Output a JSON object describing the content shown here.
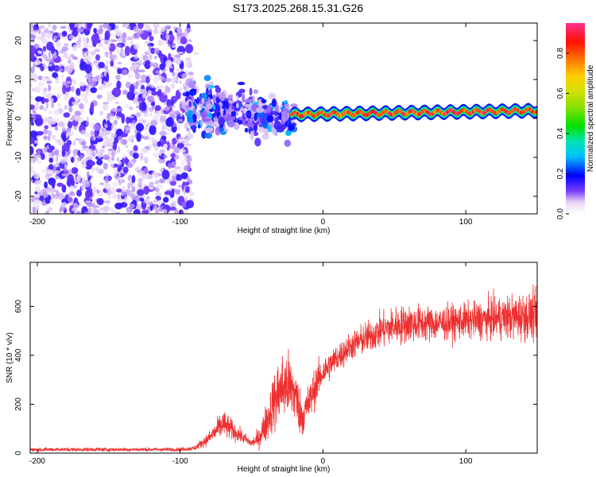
{
  "title": "S173.2025.268.15.31.G26",
  "chart_data": [
    {
      "type": "heatmap",
      "name": "spectrogram",
      "xlabel": "Height of straight line (km)",
      "ylabel": "Frequency (Hz)",
      "xlim": [
        -205,
        150
      ],
      "ylim": [
        -24.5,
        24.5
      ],
      "xticks": [
        -200,
        -100,
        0,
        100
      ],
      "xtick_labels": [
        "-200",
        "-100",
        "0",
        "100"
      ],
      "yticks": [
        -20,
        -10,
        0,
        10,
        20
      ],
      "ytick_labels": [
        "-20",
        "-10",
        "0",
        "10",
        "20"
      ],
      "colorbar": {
        "label": "Normalized spectral amplitude",
        "range": [
          0.0,
          0.95
        ],
        "ticks": [
          0.0,
          0.2,
          0.4,
          0.6,
          0.8
        ],
        "tick_labels": [
          "0.0",
          "0.2",
          "0.4",
          "0.6",
          "0.8"
        ]
      },
      "regions": [
        {
          "x_range": [
            -205,
            -92
          ],
          "freq_range": [
            -24.5,
            24.5
          ],
          "amplitude": [
            0.0,
            0.15
          ],
          "pattern": "scattered noise"
        },
        {
          "x_range": [
            -95,
            -20
          ],
          "freq_center": [
            3,
            0
          ],
          "freq_spread": 6,
          "amplitude": [
            0.1,
            0.25
          ],
          "pattern": "clustered blobs"
        },
        {
          "x_range": [
            -22,
            150
          ],
          "freq_center": [
            1,
            2
          ],
          "freq_spread": 1.5,
          "amplitude": [
            0.7,
            0.95
          ],
          "pattern": "steady tone"
        }
      ]
    },
    {
      "type": "line",
      "name": "snr",
      "xlabel": "Height of straight line (km)",
      "ylabel": "SNR (10 * v/v)",
      "xlim": [
        -205,
        150
      ],
      "ylim": [
        0,
        780
      ],
      "xticks": [
        -200,
        -100,
        0,
        100
      ],
      "xtick_labels": [
        "-200",
        "-100",
        "0",
        "100"
      ],
      "yticks": [
        0,
        200,
        400,
        600
      ],
      "ytick_labels": [
        "0",
        "200",
        "400",
        "600"
      ],
      "color": "#ee3030",
      "envelope": {
        "x": [
          -205,
          -100,
          -90,
          -80,
          -70,
          -60,
          -50,
          -45,
          -40,
          -35,
          -30,
          -25,
          -20,
          -15,
          -10,
          -5,
          0,
          10,
          20,
          30,
          40,
          50,
          60,
          80,
          100,
          120,
          140,
          150
        ],
        "mean": [
          15,
          15,
          20,
          60,
          120,
          80,
          40,
          60,
          120,
          200,
          260,
          280,
          250,
          150,
          200,
          280,
          330,
          390,
          440,
          470,
          500,
          520,
          530,
          530,
          540,
          550,
          560,
          560
        ],
        "noise": [
          12,
          12,
          15,
          40,
          90,
          50,
          25,
          60,
          120,
          180,
          220,
          220,
          200,
          130,
          130,
          120,
          100,
          90,
          90,
          100,
          110,
          120,
          120,
          110,
          110,
          130,
          150,
          150
        ]
      }
    }
  ]
}
